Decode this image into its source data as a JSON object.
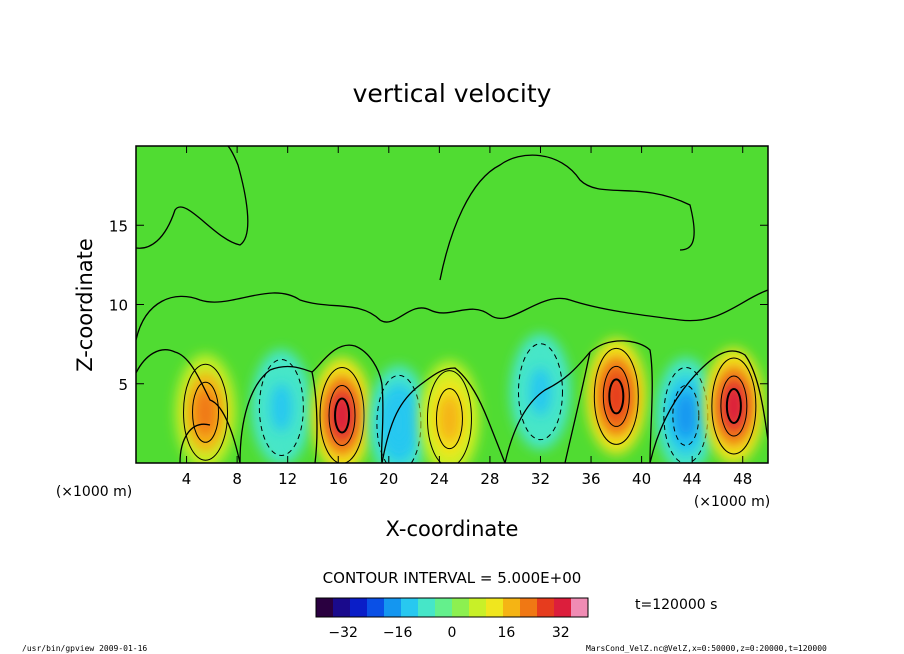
{
  "chart_data": {
    "type": "heatmap",
    "title": "vertical velocity",
    "xlabel": "X-coordinate",
    "ylabel": "Z-coordinate",
    "x_unit_left": "(×1000 m)",
    "x_unit_right": "(×1000 m)",
    "xlim": [
      0,
      50
    ],
    "ylim": [
      0,
      20
    ],
    "x_ticks": [
      4,
      8,
      12,
      16,
      20,
      24,
      28,
      32,
      36,
      40,
      44,
      48
    ],
    "y_ticks": [
      5,
      10,
      15
    ],
    "contour_interval_label": "CONTOUR INTERVAL = 5.000E+00",
    "time_label": "t=120000  s",
    "colorbar": {
      "range": [
        -40,
        40
      ],
      "ticks": [
        -32,
        -16,
        0,
        16,
        32
      ],
      "colors": [
        "#2a0040",
        "#1a0a8c",
        "#0a1ec8",
        "#0a50e6",
        "#1496f0",
        "#28c8f0",
        "#46e6c8",
        "#64f08c",
        "#8cf050",
        "#c8f028",
        "#f0e61e",
        "#f5b414",
        "#f07814",
        "#e63c1e",
        "#dc1e3c",
        "#f08cb4"
      ]
    },
    "features": [
      {
        "x": 5.5,
        "z": 3.2,
        "w": 22,
        "label": "updraft"
      },
      {
        "x": 11.5,
        "z": 3.5,
        "w": -12,
        "label": "downdraft"
      },
      {
        "x": 16.3,
        "z": 3.0,
        "w": 30,
        "label": "updraft"
      },
      {
        "x": 20.8,
        "z": 2.5,
        "w": -14,
        "label": "downdraft"
      },
      {
        "x": 24.8,
        "z": 2.8,
        "w": 16,
        "label": "updraft"
      },
      {
        "x": 32.0,
        "z": 4.5,
        "w": -12,
        "label": "downdraft"
      },
      {
        "x": 38.0,
        "z": 4.2,
        "w": 28,
        "label": "updraft"
      },
      {
        "x": 43.5,
        "z": 3.0,
        "w": -20,
        "label": "downdraft"
      },
      {
        "x": 47.3,
        "z": 3.6,
        "w": 30,
        "label": "updraft"
      }
    ]
  },
  "footer": {
    "left": "/usr/bin/gpview   2009-01-16",
    "right": "MarsCond_VelZ.nc@VelZ,x=0:50000,z=0:20000,t=120000"
  }
}
